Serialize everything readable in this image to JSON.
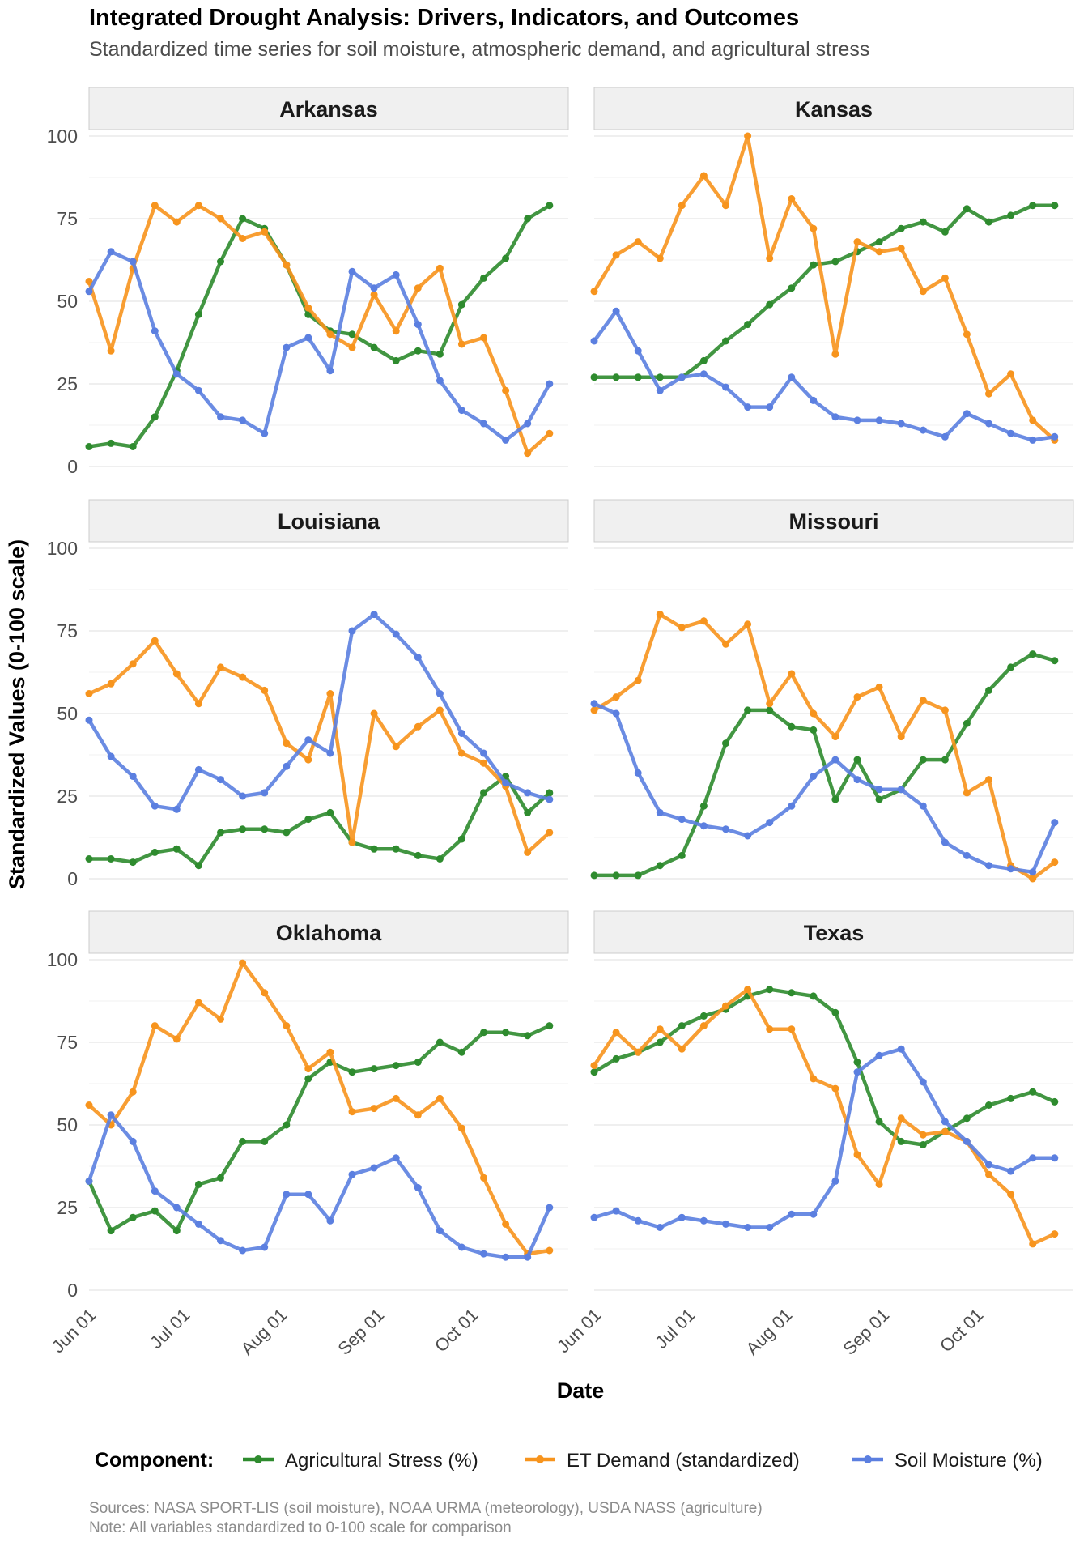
{
  "title": "Integrated Drought Analysis: Drivers, Indicators, and Outcomes",
  "subtitle": "Standardized time series for soil moisture, atmospheric demand, and agricultural stress",
  "caption": {
    "line1": "Sources: NASA SPORT-LIS (soil moisture), NOAA URMA (meteorology), USDA NASS (agriculture)",
    "line2": "Note: All variables standardized to 0-100 scale for comparison"
  },
  "legend": {
    "title": "Component:",
    "entries": [
      "Agricultural Stress (%)",
      "ET Demand (standardized)",
      "Soil Moisture (%)"
    ]
  },
  "colors": {
    "Agricultural Stress (%)": "#2e8b2e",
    "ET Demand (standardized)": "#f7941d",
    "Soil Moisture (%)": "#5b7fe0",
    "strip_bg": "#f0f0f0",
    "grid": "#e5e5e5"
  },
  "chart_data": {
    "type": "line",
    "xlabel": "Date",
    "ylabel": "Standardized Values (0-100 scale)",
    "ylim": [
      0,
      100
    ],
    "yticks": [
      0,
      25,
      50,
      75,
      100
    ],
    "x_tick_labels": [
      "Jun 01",
      "Jul 01",
      "Aug 01",
      "Sep 01",
      "Oct 01"
    ],
    "x_tick_dates": [
      "2024-06-01",
      "2024-07-01",
      "2024-08-01",
      "2024-09-01",
      "2024-10-01"
    ],
    "x_range": [
      "2024-05-31",
      "2024-10-31"
    ],
    "grid": true,
    "legend_position": "bottom",
    "x": [
      "2024-05-31",
      "2024-06-07",
      "2024-06-14",
      "2024-06-21",
      "2024-06-28",
      "2024-07-05",
      "2024-07-12",
      "2024-07-19",
      "2024-07-26",
      "2024-08-02",
      "2024-08-09",
      "2024-08-16",
      "2024-08-23",
      "2024-08-30",
      "2024-09-06",
      "2024-09-13",
      "2024-09-20",
      "2024-09-27",
      "2024-10-04",
      "2024-10-11",
      "2024-10-18",
      "2024-10-25"
    ],
    "panels": [
      {
        "state": "Arkansas",
        "series": [
          {
            "name": "Agricultural Stress (%)",
            "values": [
              6,
              7,
              6,
              15,
              29,
              46,
              62,
              75,
              72,
              61,
              46,
              41,
              40,
              36,
              32,
              35,
              34,
              49,
              57,
              63,
              75,
              79
            ]
          },
          {
            "name": "ET Demand (standardized)",
            "values": [
              56,
              35,
              60,
              79,
              74,
              79,
              75,
              69,
              71,
              61,
              48,
              40,
              36,
              52,
              41,
              54,
              60,
              37,
              39,
              23,
              4,
              10
            ]
          },
          {
            "name": "Soil Moisture (%)",
            "values": [
              53,
              65,
              62,
              41,
              28,
              23,
              15,
              14,
              10,
              36,
              39,
              29,
              59,
              54,
              58,
              43,
              26,
              17,
              13,
              8,
              13,
              25
            ]
          }
        ]
      },
      {
        "state": "Kansas",
        "series": [
          {
            "name": "Agricultural Stress (%)",
            "values": [
              27,
              27,
              27,
              27,
              27,
              32,
              38,
              43,
              49,
              54,
              61,
              62,
              65,
              68,
              72,
              74,
              71,
              78,
              74,
              76,
              79,
              79
            ]
          },
          {
            "name": "ET Demand (standardized)",
            "values": [
              53,
              64,
              68,
              63,
              79,
              88,
              79,
              100,
              63,
              81,
              72,
              34,
              68,
              65,
              66,
              53,
              57,
              40,
              22,
              28,
              14,
              8
            ]
          },
          {
            "name": "Soil Moisture (%)",
            "values": [
              38,
              47,
              35,
              23,
              27,
              28,
              24,
              18,
              18,
              27,
              20,
              15,
              14,
              14,
              13,
              11,
              9,
              16,
              13,
              10,
              8,
              9
            ]
          }
        ]
      },
      {
        "state": "Louisiana",
        "series": [
          {
            "name": "Agricultural Stress (%)",
            "values": [
              6,
              6,
              5,
              8,
              9,
              4,
              14,
              15,
              15,
              14,
              18,
              20,
              11,
              9,
              9,
              7,
              6,
              12,
              26,
              31,
              20,
              26
            ]
          },
          {
            "name": "ET Demand (standardized)",
            "values": [
              56,
              59,
              65,
              72,
              62,
              53,
              64,
              61,
              57,
              41,
              36,
              56,
              11,
              50,
              40,
              46,
              51,
              38,
              35,
              28,
              8,
              14
            ]
          },
          {
            "name": "Soil Moisture (%)",
            "values": [
              48,
              37,
              31,
              22,
              21,
              33,
              30,
              25,
              26,
              34,
              42,
              38,
              75,
              80,
              74,
              67,
              56,
              44,
              38,
              29,
              26,
              24
            ]
          }
        ]
      },
      {
        "state": "Missouri",
        "series": [
          {
            "name": "Agricultural Stress (%)",
            "values": [
              1,
              1,
              1,
              4,
              7,
              22,
              41,
              51,
              51,
              46,
              45,
              24,
              36,
              24,
              27,
              36,
              36,
              47,
              57,
              64,
              68,
              66
            ]
          },
          {
            "name": "ET Demand (standardized)",
            "values": [
              51,
              55,
              60,
              80,
              76,
              78,
              71,
              77,
              53,
              62,
              50,
              43,
              55,
              58,
              43,
              54,
              51,
              26,
              30,
              4,
              0,
              5
            ]
          },
          {
            "name": "Soil Moisture (%)",
            "values": [
              53,
              50,
              32,
              20,
              18,
              16,
              15,
              13,
              17,
              22,
              31,
              36,
              30,
              27,
              27,
              22,
              11,
              7,
              4,
              3,
              2,
              17
            ]
          }
        ]
      },
      {
        "state": "Oklahoma",
        "series": [
          {
            "name": "Agricultural Stress (%)",
            "values": [
              33,
              18,
              22,
              24,
              18,
              32,
              34,
              45,
              45,
              50,
              64,
              69,
              66,
              67,
              68,
              69,
              75,
              72,
              78,
              78,
              77,
              80
            ]
          },
          {
            "name": "ET Demand (standardized)",
            "values": [
              56,
              50,
              60,
              80,
              76,
              87,
              82,
              99,
              90,
              80,
              67,
              72,
              54,
              55,
              58,
              53,
              58,
              49,
              34,
              20,
              11,
              12
            ]
          },
          {
            "name": "Soil Moisture (%)",
            "values": [
              33,
              53,
              45,
              30,
              25,
              20,
              15,
              12,
              13,
              29,
              29,
              21,
              35,
              37,
              40,
              31,
              18,
              13,
              11,
              10,
              10,
              25
            ]
          }
        ]
      },
      {
        "state": "Texas",
        "series": [
          {
            "name": "Agricultural Stress (%)",
            "values": [
              66,
              70,
              72,
              75,
              80,
              83,
              85,
              89,
              91,
              90,
              89,
              84,
              69,
              51,
              45,
              44,
              48,
              52,
              56,
              58,
              60,
              57
            ]
          },
          {
            "name": "ET Demand (standardized)",
            "values": [
              68,
              78,
              72,
              79,
              73,
              80,
              86,
              91,
              79,
              79,
              64,
              61,
              41,
              32,
              52,
              47,
              48,
              45,
              35,
              29,
              14,
              17
            ]
          },
          {
            "name": "Soil Moisture (%)",
            "values": [
              22,
              24,
              21,
              19,
              22,
              21,
              20,
              19,
              19,
              23,
              23,
              33,
              66,
              71,
              73,
              63,
              51,
              45,
              38,
              36,
              40,
              40
            ]
          }
        ]
      }
    ]
  }
}
